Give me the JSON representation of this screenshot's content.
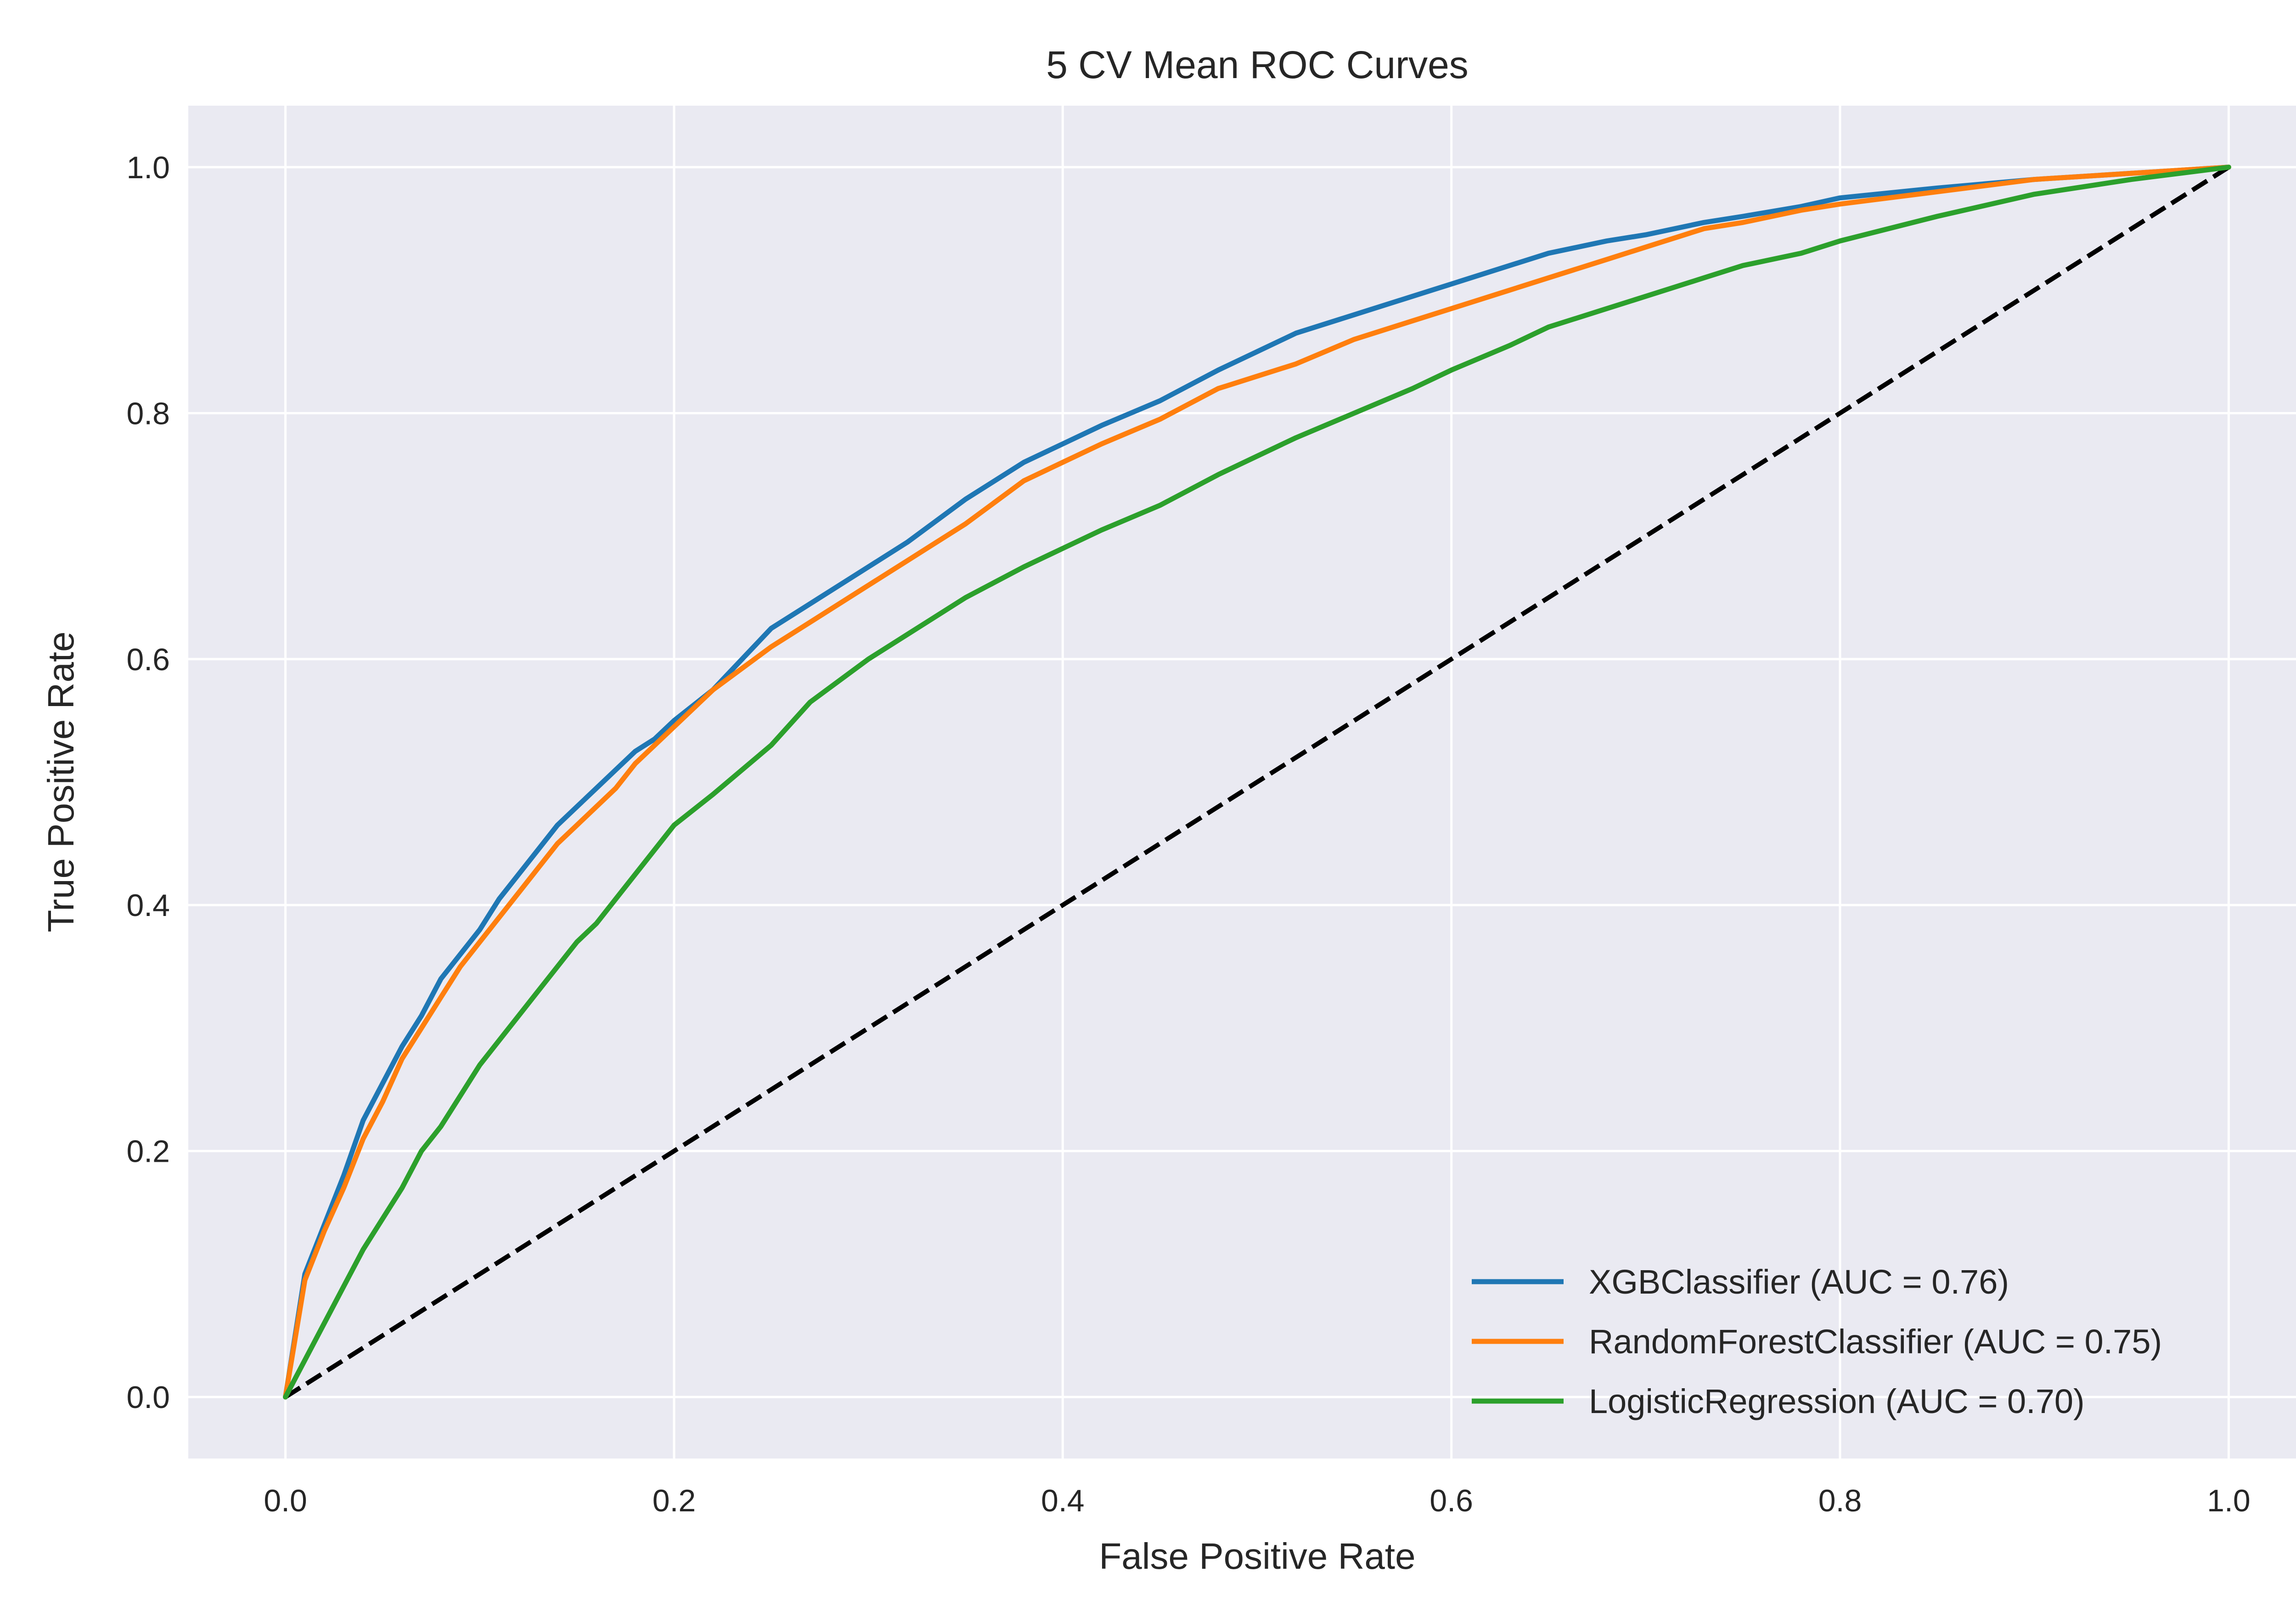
{
  "chart_data": {
    "type": "line",
    "title": "5 CV Mean ROC Curves",
    "xlabel": "False Positive Rate",
    "ylabel": "True Positive Rate",
    "xlim": [
      -0.05,
      1.05
    ],
    "ylim": [
      -0.05,
      1.05
    ],
    "xticks": [
      0.0,
      0.2,
      0.4,
      0.6,
      0.8,
      1.0
    ],
    "yticks": [
      0.0,
      0.2,
      0.4,
      0.6,
      0.8,
      1.0
    ],
    "xtick_labels": [
      "0.0",
      "0.2",
      "0.4",
      "0.6",
      "0.8",
      "1.0"
    ],
    "ytick_labels": [
      "0.0",
      "0.2",
      "0.4",
      "0.6",
      "0.8",
      "1.0"
    ],
    "grid": true,
    "background": "#eaeaf2",
    "legend_position": "lower-right",
    "series": [
      {
        "name": "XGBClassifier (AUC = 0.76)",
        "color": "#1f77b4",
        "x": [
          0.0,
          0.01,
          0.02,
          0.03,
          0.04,
          0.05,
          0.06,
          0.07,
          0.08,
          0.09,
          0.1,
          0.11,
          0.12,
          0.13,
          0.14,
          0.15,
          0.16,
          0.17,
          0.18,
          0.19,
          0.2,
          0.22,
          0.25,
          0.27,
          0.3,
          0.32,
          0.35,
          0.38,
          0.4,
          0.42,
          0.45,
          0.48,
          0.5,
          0.52,
          0.55,
          0.58,
          0.6,
          0.63,
          0.65,
          0.68,
          0.7,
          0.73,
          0.75,
          0.78,
          0.8,
          0.85,
          0.9,
          0.95,
          1.0
        ],
        "y": [
          0.0,
          0.1,
          0.14,
          0.18,
          0.225,
          0.255,
          0.285,
          0.31,
          0.34,
          0.36,
          0.38,
          0.405,
          0.425,
          0.445,
          0.465,
          0.48,
          0.495,
          0.51,
          0.525,
          0.535,
          0.55,
          0.575,
          0.625,
          0.645,
          0.675,
          0.695,
          0.73,
          0.76,
          0.775,
          0.79,
          0.81,
          0.835,
          0.85,
          0.865,
          0.88,
          0.895,
          0.905,
          0.92,
          0.93,
          0.94,
          0.945,
          0.955,
          0.96,
          0.968,
          0.975,
          0.983,
          0.99,
          0.995,
          1.0
        ]
      },
      {
        "name": "RandomForestClassifier (AUC = 0.75)",
        "color": "#ff7f0e",
        "x": [
          0.0,
          0.01,
          0.02,
          0.03,
          0.04,
          0.05,
          0.06,
          0.07,
          0.08,
          0.09,
          0.1,
          0.11,
          0.12,
          0.13,
          0.14,
          0.15,
          0.16,
          0.17,
          0.18,
          0.19,
          0.2,
          0.22,
          0.25,
          0.27,
          0.3,
          0.32,
          0.35,
          0.38,
          0.4,
          0.42,
          0.45,
          0.48,
          0.5,
          0.52,
          0.55,
          0.58,
          0.6,
          0.63,
          0.65,
          0.68,
          0.7,
          0.73,
          0.75,
          0.78,
          0.8,
          0.85,
          0.9,
          0.95,
          1.0
        ],
        "y": [
          0.0,
          0.095,
          0.135,
          0.17,
          0.21,
          0.24,
          0.275,
          0.3,
          0.325,
          0.35,
          0.37,
          0.39,
          0.41,
          0.43,
          0.45,
          0.465,
          0.48,
          0.495,
          0.515,
          0.53,
          0.545,
          0.575,
          0.61,
          0.63,
          0.66,
          0.68,
          0.71,
          0.745,
          0.76,
          0.775,
          0.795,
          0.82,
          0.83,
          0.84,
          0.86,
          0.875,
          0.885,
          0.9,
          0.91,
          0.925,
          0.935,
          0.95,
          0.955,
          0.965,
          0.97,
          0.98,
          0.99,
          0.995,
          1.0
        ]
      },
      {
        "name": "LogisticRegression (AUC = 0.70)",
        "color": "#2ca02c",
        "x": [
          0.0,
          0.01,
          0.02,
          0.03,
          0.04,
          0.05,
          0.06,
          0.07,
          0.08,
          0.09,
          0.1,
          0.11,
          0.12,
          0.13,
          0.14,
          0.15,
          0.16,
          0.17,
          0.18,
          0.19,
          0.2,
          0.22,
          0.25,
          0.27,
          0.3,
          0.32,
          0.35,
          0.38,
          0.4,
          0.42,
          0.45,
          0.48,
          0.5,
          0.52,
          0.55,
          0.58,
          0.6,
          0.63,
          0.65,
          0.68,
          0.7,
          0.73,
          0.75,
          0.78,
          0.8,
          0.85,
          0.9,
          0.95,
          1.0
        ],
        "y": [
          0.0,
          0.03,
          0.06,
          0.09,
          0.12,
          0.145,
          0.17,
          0.2,
          0.22,
          0.245,
          0.27,
          0.29,
          0.31,
          0.33,
          0.35,
          0.37,
          0.385,
          0.405,
          0.425,
          0.445,
          0.465,
          0.49,
          0.53,
          0.565,
          0.6,
          0.62,
          0.65,
          0.675,
          0.69,
          0.705,
          0.725,
          0.75,
          0.765,
          0.78,
          0.8,
          0.82,
          0.835,
          0.855,
          0.87,
          0.885,
          0.895,
          0.91,
          0.92,
          0.93,
          0.94,
          0.96,
          0.978,
          0.99,
          1.0
        ]
      },
      {
        "name": "",
        "color": "#000000",
        "style": "dashed",
        "x": [
          0.0,
          1.0
        ],
        "y": [
          0.0,
          1.0
        ]
      }
    ]
  }
}
